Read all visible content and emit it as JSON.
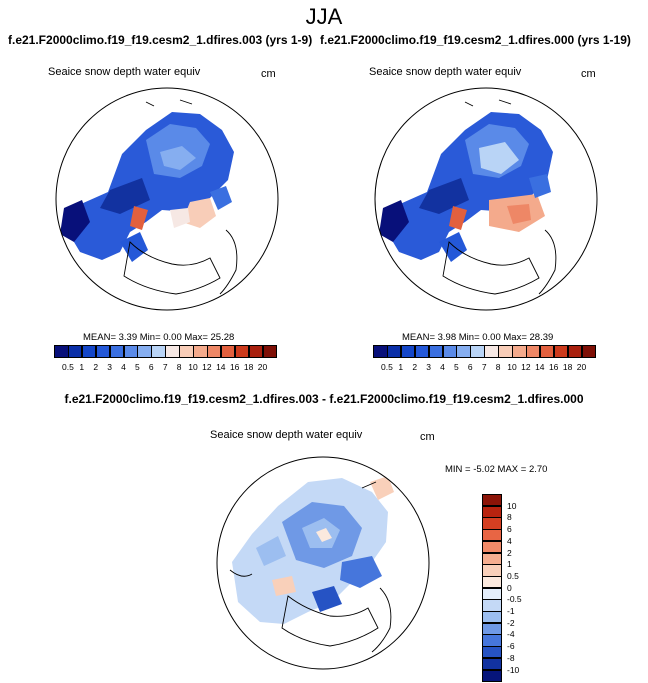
{
  "header": {
    "season": "JJA",
    "left_case": "f.e21.F2000climo.f19_f19.cesm2_1.dfires.003 (yrs 1-9)",
    "right_case": "f.e21.F2000climo.f19_f19.cesm2_1.dfires.000 (yrs 1-19)",
    "diff_title": "f.e21.F2000climo.f19_f19.cesm2_1.dfires.003 - f.e21.F2000climo.f19_f19.cesm2_1.dfires.000"
  },
  "panels": [
    {
      "variable": "Seaice snow depth water equiv",
      "units": "cm",
      "stats": "MEAN=   3.39  Min=   0.00  Max=  25.28"
    },
    {
      "variable": "Seaice snow depth water equiv",
      "units": "cm",
      "stats": "MEAN=   3.98  Min=   0.00  Max=  28.39"
    },
    {
      "variable": "Seaice snow depth water equiv",
      "units": "cm",
      "stats": "MIN =  -5.02 MAX =   2.70"
    }
  ],
  "colorbar_abs": {
    "labels": [
      "0.5",
      "1",
      "2",
      "3",
      "4",
      "5",
      "6",
      "7",
      "8",
      "10",
      "12",
      "14",
      "16",
      "18",
      "20"
    ],
    "colors": [
      "#08107a",
      "#0a2fa8",
      "#1446c8",
      "#2458d8",
      "#3a6fe0",
      "#5a8ae8",
      "#86aef0",
      "#b9d4f6",
      "#f6e8e4",
      "#f8cdb8",
      "#f4aa8c",
      "#ee8766",
      "#e2603e",
      "#cc3a1c",
      "#a9200e",
      "#7e0f06"
    ]
  },
  "colorbar_diff": {
    "labels": [
      "10",
      "8",
      "6",
      "4",
      "2",
      "1",
      "0.5",
      "0",
      "-0.5",
      "-1",
      "-2",
      "-4",
      "-6",
      "-8",
      "-10"
    ],
    "colors": [
      "#8c1408",
      "#b8230f",
      "#d43f22",
      "#e86544",
      "#f28a68",
      "#f6ae90",
      "#f9d0ba",
      "#fbe9de",
      "#e4eefb",
      "#c4d9f6",
      "#9cbef0",
      "#6f99e6",
      "#4676dc",
      "#2653c4",
      "#1232a0",
      "#06157a"
    ]
  },
  "icons": {
    "map": "polar-stereographic-map-icon"
  }
}
